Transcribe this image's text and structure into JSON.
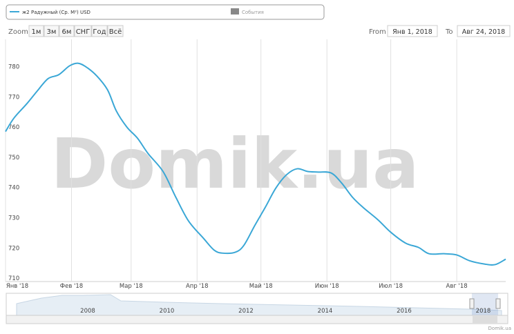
{
  "chart_data": {
    "type": "line",
    "x": [
      "2018-01-01",
      "2018-01-05",
      "2018-01-11",
      "2018-01-16",
      "2018-01-21",
      "2018-01-26",
      "2018-01-31",
      "2018-02-04",
      "2018-02-08",
      "2018-02-13",
      "2018-02-18",
      "2018-02-22",
      "2018-02-27",
      "2018-03-04",
      "2018-03-09",
      "2018-03-16",
      "2018-03-22",
      "2018-03-28",
      "2018-04-04",
      "2018-04-09",
      "2018-04-13",
      "2018-04-19",
      "2018-04-23",
      "2018-04-28",
      "2018-05-03",
      "2018-05-08",
      "2018-05-13",
      "2018-05-18",
      "2018-05-23",
      "2018-05-28",
      "2018-06-03",
      "2018-06-08",
      "2018-06-13",
      "2018-06-18",
      "2018-06-25",
      "2018-07-01",
      "2018-07-08",
      "2018-07-14",
      "2018-07-19",
      "2018-07-26",
      "2018-08-01",
      "2018-08-07",
      "2018-08-14",
      "2018-08-19",
      "2018-08-24"
    ],
    "series": [
      {
        "name": "ж2 Радужный (Ср. М²) USD",
        "color": "#3aa7d6",
        "values": [
          758.5,
          763,
          767.7,
          772,
          776,
          777.3,
          780.2,
          781.1,
          779.8,
          776.8,
          772.2,
          765.4,
          760,
          756.3,
          751.2,
          745.3,
          736.8,
          728.9,
          723.2,
          719.3,
          718.3,
          718.6,
          720.9,
          727.3,
          733.4,
          739.8,
          744.2,
          746.2,
          745.3,
          745.1,
          744.8,
          741.4,
          736.8,
          733.4,
          729.3,
          725.2,
          721.6,
          720.2,
          718.1,
          718.1,
          717.7,
          715.8,
          714.7,
          714.5,
          716.3
        ]
      }
    ],
    "events_label": "События",
    "xlim": [
      "2018-01-01",
      "2018-08-24"
    ],
    "xticks": [
      {
        "value": "2018-01-01",
        "label": "Янв '18"
      },
      {
        "value": "2018-02-01",
        "label": "Фев '18"
      },
      {
        "value": "2018-03-01",
        "label": "Мар '18"
      },
      {
        "value": "2018-04-01",
        "label": "Апр '18"
      },
      {
        "value": "2018-05-01",
        "label": "Май '18"
      },
      {
        "value": "2018-06-01",
        "label": "Июн '18"
      },
      {
        "value": "2018-07-01",
        "label": "Июл '18"
      },
      {
        "value": "2018-08-01",
        "label": "Авг '18"
      }
    ],
    "ylim": [
      708.9,
      789
    ],
    "yticks": [
      710,
      720,
      730,
      740,
      750,
      760,
      770,
      780
    ],
    "xgrid": true
  },
  "range_selector": {
    "zoom_label": "Zoom",
    "buttons": [
      "1м",
      "3м",
      "6м",
      "СНГ",
      "Год",
      "Всё"
    ],
    "from_label": "From",
    "from": "Янв 1, 2018",
    "to_label": "To",
    "to": "Авг 24, 2018"
  },
  "navigator": {
    "labels": [
      "2008",
      "2010",
      "2012",
      "2014",
      "2016",
      "2018"
    ]
  },
  "watermark": "Domik.ua",
  "credit": "Domik.ua"
}
